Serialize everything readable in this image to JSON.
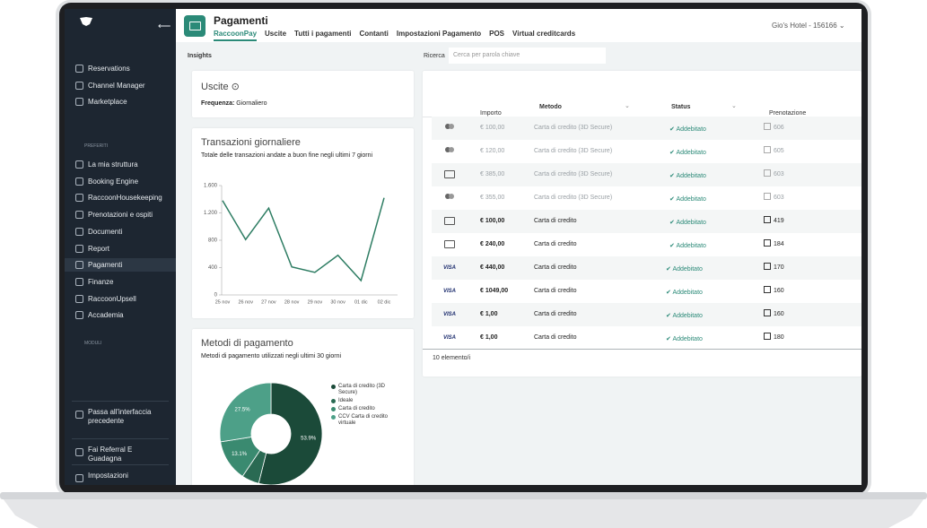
{
  "sidebar": {
    "nav": [
      "Reservations",
      "Channel Manager",
      "Marketplace"
    ],
    "favorites_label": "PREFERITI",
    "favorites": [
      "La mia struttura",
      "Booking Engine",
      "RaccoonHousekeeping",
      "Prenotazioni e ospiti",
      "Documenti",
      "Report",
      "Pagamenti",
      "Finanze",
      "RaccoonUpsell",
      "Accademia"
    ],
    "modules_label": "MODULI",
    "bottom": [
      "Passa all'interfaccia precedente",
      "Fai Referral E Guadagna",
      "Impostazioni"
    ]
  },
  "header": {
    "title": "Pagamenti",
    "tabs": [
      "RaccoonPay",
      "Uscite",
      "Tutti i pagamenti",
      "Contanti",
      "Impostazioni Pagamento",
      "POS",
      "Virtual creditcards"
    ],
    "hotel": "Gio's Hotel - 156166"
  },
  "insights_label": "Insights",
  "search": {
    "label": "Ricerca",
    "placeholder": "Cerca per parola chiave"
  },
  "uscite_card": {
    "title": "Uscite",
    "frequency_label": "Frequenza:",
    "frequency": "Giornaliero"
  },
  "chart_data": [
    {
      "type": "line",
      "title": "Transazioni giornaliere",
      "subtitle": "Totale delle transazioni andate a buon fine negli ultimi 7 giorni",
      "categories": [
        "25 nov",
        "26 nov",
        "27 nov",
        "28 nov",
        "29 nov",
        "30 nov",
        "01 dic",
        "02 dic"
      ],
      "values": [
        1380,
        810,
        1270,
        410,
        330,
        580,
        210,
        1420
      ],
      "color": "#2e7d63",
      "ylim": [
        0,
        1600
      ],
      "yticks": [
        0,
        400,
        800,
        {
          "value": 1200,
          "label": "1.200"
        },
        {
          "value": 1600,
          "label": "1.600"
        }
      ]
    },
    {
      "type": "pie",
      "title": "Metodi di pagamento",
      "subtitle": "Metodi di pagamento utilizzati negli ultimi 30 giorni",
      "categories": [
        "Carta di credito (3D Secure)",
        "Ideale",
        "Carta di credito",
        "CCV Carta di credito virtuale"
      ],
      "values": [
        53.9,
        5.5,
        13.1,
        27.5
      ],
      "value_labels": [
        "53.9%",
        null,
        "13.1%",
        "27.5%"
      ],
      "colors": [
        "#1b4a39",
        "#2a6a53",
        "#3a8a70",
        "#4da088"
      ]
    }
  ],
  "table": {
    "columns": [
      "Importo",
      "Metodo",
      "Status",
      "Prenotazione"
    ],
    "rows": [
      {
        "icon": "mastercard",
        "faded": true,
        "amount": "€ 100,00",
        "method": "Carta di credito (3D Secure)",
        "status": "Addebitato",
        "booking": "606"
      },
      {
        "icon": "mastercard",
        "faded": true,
        "amount": "€ 120,00",
        "method": "Carta di credito (3D Secure)",
        "status": "Addebitato",
        "booking": "605"
      },
      {
        "icon": "card",
        "faded": true,
        "amount": "€ 385,00",
        "method": "Carta di credito (3D Secure)",
        "status": "Addebitato",
        "booking": "603"
      },
      {
        "icon": "mastercard",
        "faded": true,
        "amount": "€ 355,00",
        "method": "Carta di credito (3D Secure)",
        "status": "Addebitato",
        "booking": "603"
      },
      {
        "icon": "card",
        "faded": false,
        "amount": "€ 100,00",
        "method": "Carta di credito",
        "status": "Addebitato",
        "booking": "419"
      },
      {
        "icon": "card",
        "faded": false,
        "amount": "€ 240,00",
        "method": "Carta di credito",
        "status": "Addebitato",
        "booking": "184"
      },
      {
        "icon": "VISA",
        "faded": false,
        "amount": "€ 440,00",
        "method": "Carta di credito",
        "status": "Addebitato",
        "booking": "170"
      },
      {
        "icon": "VISA",
        "faded": false,
        "amount": "€ 1049,00",
        "method": "Carta di credito",
        "status": "Addebitato",
        "booking": "160"
      },
      {
        "icon": "VISA",
        "faded": false,
        "amount": "€ 1,00",
        "method": "Carta di credito",
        "status": "Addebitato",
        "booking": "160"
      },
      {
        "icon": "VISA",
        "faded": false,
        "amount": "€ 1,00",
        "method": "Carta di credito",
        "status": "Addebitato",
        "booking": "180"
      }
    ],
    "footer": "10 elemento/i"
  }
}
